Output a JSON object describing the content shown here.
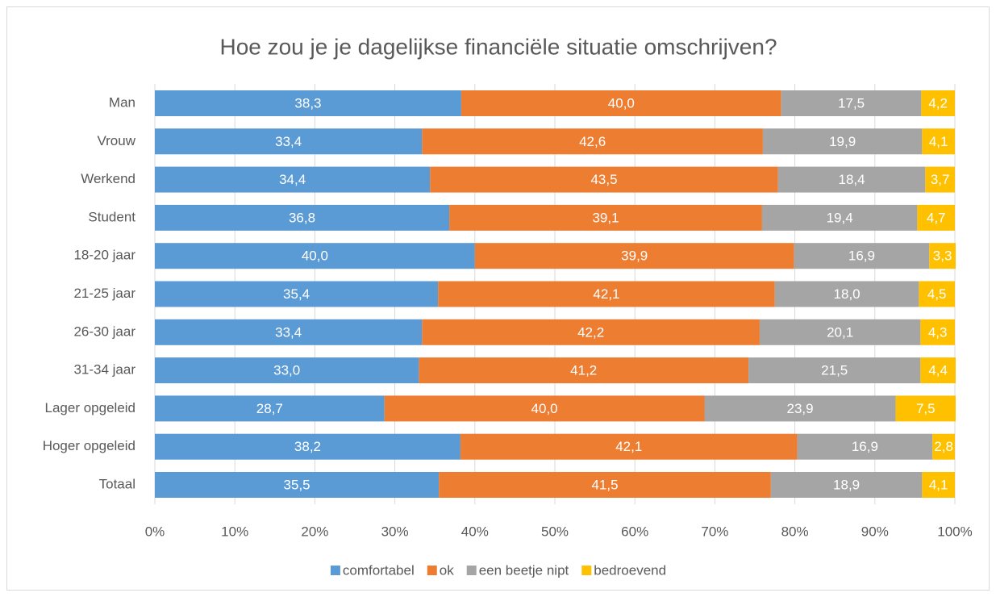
{
  "chart_data": {
    "type": "stacked-bar-horizontal",
    "title": "Hoe zou je je dagelijkse financiële situatie omschrijven?",
    "categories": [
      "Man",
      "Vrouw",
      "Werkend",
      "Student",
      "18-20 jaar",
      "21-25 jaar",
      "26-30 jaar",
      "31-34 jaar",
      "Lager opgeleid",
      "Hoger opgeleid",
      "Totaal"
    ],
    "series": [
      {
        "name": "comfortabel",
        "color": "#5b9bd5",
        "values": [
          38.3,
          33.4,
          34.4,
          36.8,
          40.0,
          35.4,
          33.4,
          33.0,
          28.7,
          38.2,
          35.5
        ],
        "value_labels": [
          "38,3",
          "33,4",
          "34,4",
          "36,8",
          "40,0",
          "35,4",
          "33,4",
          "33,0",
          "28,7",
          "38,2",
          "35,5"
        ]
      },
      {
        "name": "ok",
        "color": "#ed7d31",
        "values": [
          40.0,
          42.6,
          43.5,
          39.1,
          39.9,
          42.1,
          42.2,
          41.2,
          40.0,
          42.1,
          41.5
        ],
        "value_labels": [
          "40,0",
          "42,6",
          "43,5",
          "39,1",
          "39,9",
          "42,1",
          "42,2",
          "41,2",
          "40,0",
          "42,1",
          "41,5"
        ]
      },
      {
        "name": "een beetje nipt",
        "color": "#a5a5a5",
        "values": [
          17.5,
          19.9,
          18.4,
          19.4,
          16.9,
          18.0,
          20.1,
          21.5,
          23.9,
          16.9,
          18.9
        ],
        "value_labels": [
          "17,5",
          "19,9",
          "18,4",
          "19,4",
          "16,9",
          "18,0",
          "20,1",
          "21,5",
          "23,9",
          "16,9",
          "18,9"
        ]
      },
      {
        "name": "bedroevend",
        "color": "#ffc000",
        "values": [
          4.2,
          4.1,
          3.7,
          4.7,
          3.3,
          4.5,
          4.3,
          4.4,
          7.5,
          2.8,
          4.1
        ],
        "value_labels": [
          "4,2",
          "4,1",
          "3,7",
          "4,7",
          "3,3",
          "4,5",
          "4,3",
          "4,4",
          "7,5",
          "2,8",
          "4,1"
        ]
      }
    ],
    "xlim": [
      0,
      100
    ],
    "xticks": [
      {
        "value": 0,
        "label": "0%"
      },
      {
        "value": 10,
        "label": "10%"
      },
      {
        "value": 20,
        "label": "20%"
      },
      {
        "value": 30,
        "label": "30%"
      },
      {
        "value": 40,
        "label": "40%"
      },
      {
        "value": 50,
        "label": "50%"
      },
      {
        "value": 60,
        "label": "60%"
      },
      {
        "value": 70,
        "label": "70%"
      },
      {
        "value": 80,
        "label": "80%"
      },
      {
        "value": 90,
        "label": "90%"
      },
      {
        "value": 100,
        "label": "100%"
      }
    ],
    "grid": true,
    "legend": "bottom"
  }
}
